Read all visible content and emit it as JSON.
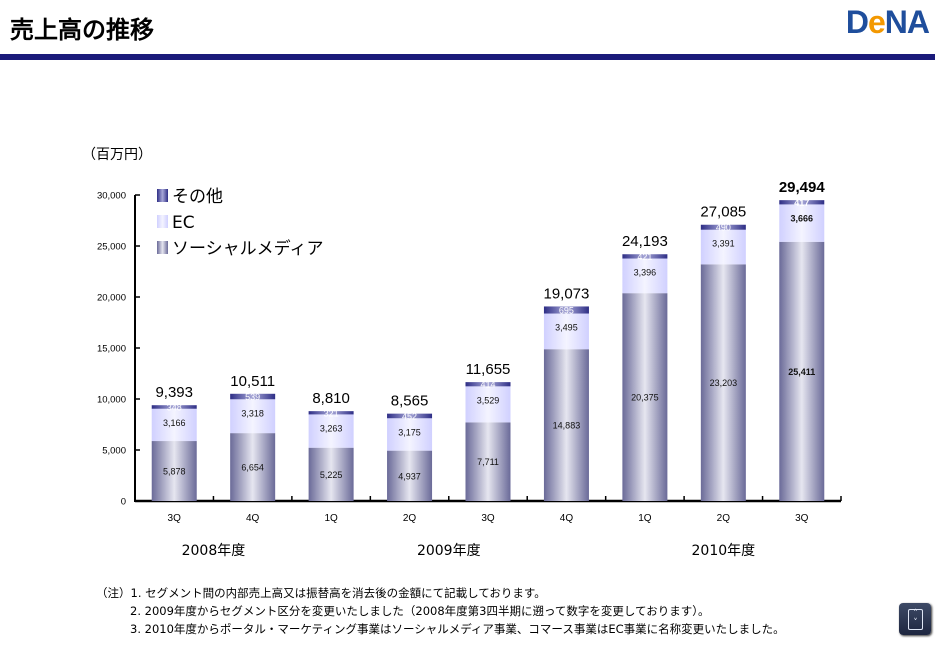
{
  "header": {
    "title": "売上高の推移",
    "logo_text": "DeNA",
    "logo_parts": [
      "D",
      "e",
      "NA"
    ],
    "rule_color": "#1a1a7a"
  },
  "chart_data": {
    "type": "bar",
    "stacked": true,
    "unit_label": "（百万円）",
    "categories": [
      "3Q",
      "4Q",
      "1Q",
      "2Q",
      "3Q",
      "4Q",
      "1Q",
      "2Q",
      "3Q"
    ],
    "fiscal_years": [
      {
        "label": "2008年度",
        "span": [
          0,
          1
        ]
      },
      {
        "label": "2009年度",
        "span": [
          2,
          5
        ]
      },
      {
        "label": "2010年度",
        "span": [
          6,
          8
        ]
      }
    ],
    "series": [
      {
        "name": "ソーシャルメディア",
        "color": "#6e6e9c",
        "values": [
          5878,
          6654,
          5225,
          4937,
          7711,
          14883,
          20375,
          23203,
          25411
        ],
        "labels": [
          "5,878",
          "6,654",
          "5,225",
          "4,937",
          "7,711",
          "14,883",
          "20,375",
          "23,203",
          "25,411"
        ]
      },
      {
        "name": "EC",
        "color": "#dcdcff",
        "values": [
          3166,
          3318,
          3263,
          3175,
          3529,
          3495,
          3396,
          3391,
          3666
        ],
        "labels": [
          "3,166",
          "3,318",
          "3,263",
          "3,175",
          "3,529",
          "3,495",
          "3,396",
          "3,391",
          "3,666"
        ]
      },
      {
        "name": "その他",
        "color": "#3a3a8c",
        "values": [
          348,
          539,
          321,
          452,
          414,
          695,
          421,
          490,
          417
        ],
        "labels": [
          "348",
          "539",
          "321",
          "452",
          "414",
          "695",
          "421",
          "490",
          "417"
        ]
      }
    ],
    "totals": [
      9393,
      10511,
      8810,
      8565,
      11655,
      19073,
      24193,
      27085,
      29494
    ],
    "total_labels": [
      "9,393",
      "10,511",
      "8,810",
      "8,565",
      "11,655",
      "19,073",
      "24,193",
      "27,085",
      "29,494"
    ],
    "highlight_index": 8,
    "ylim": [
      0,
      30000
    ],
    "yticks": [
      0,
      5000,
      10000,
      15000,
      20000,
      25000,
      30000
    ],
    "ytick_labels": [
      "0",
      "5,000",
      "10,000",
      "15,000",
      "20,000",
      "25,000",
      "30,000"
    ],
    "legend": [
      "その他",
      "EC",
      "ソーシャルメディア"
    ],
    "legend_position": "top-left",
    "grid": false,
    "title": "売上高の推移",
    "xlabel": "",
    "ylabel": "（百万円）"
  },
  "notes": {
    "prefix": "（注）",
    "items": [
      "1. セグメント間の内部売上高又は振替高を消去後の金額にて記載しております。",
      "2. 2009年度からセグメント区分を変更いたしました（2008年度第3四半期に遡って数字を変更しております）。",
      "3. 2010年度からポータル・マーケティング事業はソーシャルメディア事業、コマース事業はEC事業に名称変更いたしました。"
    ]
  },
  "widget": {
    "icon": "scroll-up-down-icon",
    "up_glyph": "˄",
    "down_glyph": "˅"
  }
}
